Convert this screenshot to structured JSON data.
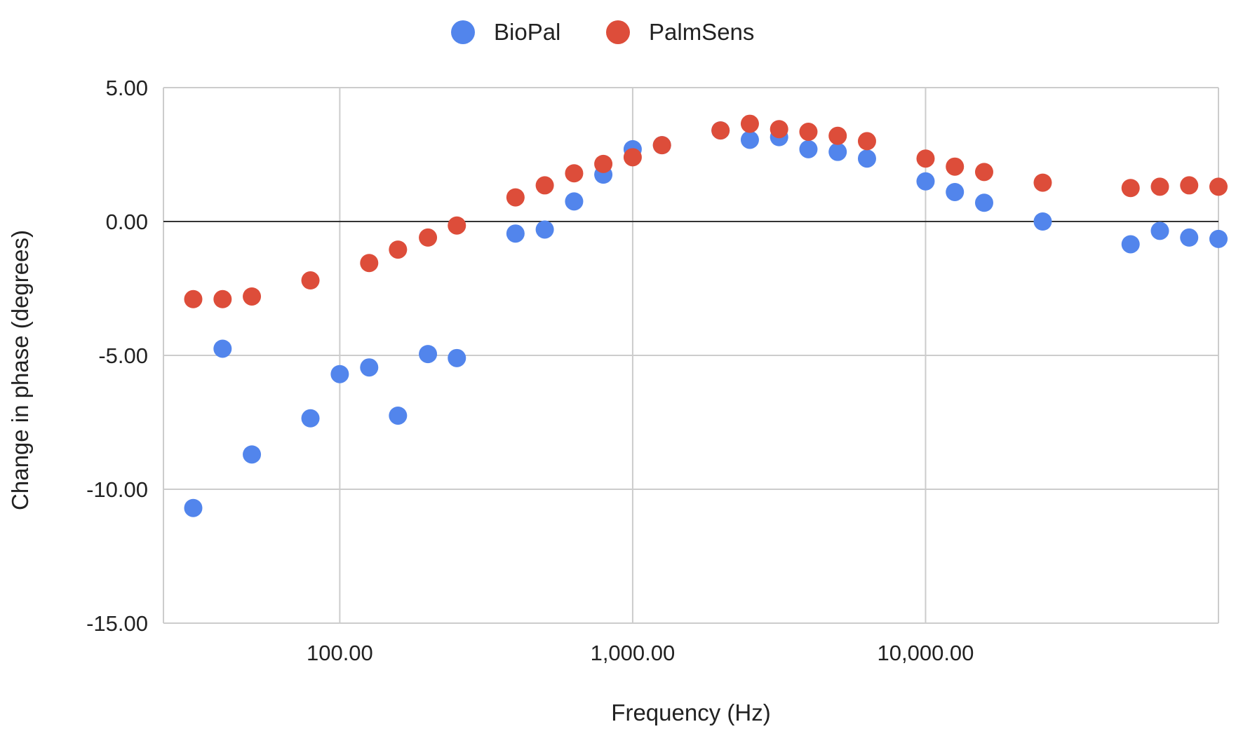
{
  "chart_data": {
    "type": "scatter",
    "title": "",
    "xlabel": "Frequency (Hz)",
    "ylabel": "Change in phase (degrees)",
    "x_scale": "log",
    "xlim": [
      25,
      100000
    ],
    "ylim": [
      -15,
      5
    ],
    "x_ticks": [
      {
        "value": 100,
        "label": "100.00"
      },
      {
        "value": 1000,
        "label": "1,000.00"
      },
      {
        "value": 10000,
        "label": "10,000.00"
      }
    ],
    "x_gridlines": [
      100,
      1000,
      10000,
      100000
    ],
    "y_ticks": [
      {
        "value": 5,
        "label": "5.00"
      },
      {
        "value": 0,
        "label": "0.00"
      },
      {
        "value": -5,
        "label": "-5.00"
      },
      {
        "value": -10,
        "label": "-10.00"
      },
      {
        "value": -15,
        "label": "-15.00"
      }
    ],
    "grid": true,
    "legend_position": "top-center",
    "series": [
      {
        "name": "BioPal",
        "color": "#5285EC",
        "points": [
          [
            31.6,
            -10.7
          ],
          [
            39.8,
            -4.75
          ],
          [
            50.1,
            -8.7
          ],
          [
            79.4,
            -7.35
          ],
          [
            100,
            -5.7
          ],
          [
            126,
            -5.45
          ],
          [
            158,
            -7.25
          ],
          [
            200,
            -4.95
          ],
          [
            251,
            -5.1
          ],
          [
            398,
            -0.45
          ],
          [
            501,
            -0.3
          ],
          [
            631,
            0.75
          ],
          [
            794,
            1.75
          ],
          [
            1000,
            2.7
          ],
          [
            1259,
            2.85
          ],
          [
            1995,
            3.4
          ],
          [
            2512,
            3.05
          ],
          [
            3162,
            3.15
          ],
          [
            3981,
            2.7
          ],
          [
            5012,
            2.6
          ],
          [
            6310,
            2.35
          ],
          [
            10000,
            1.5
          ],
          [
            12589,
            1.1
          ],
          [
            15849,
            0.7
          ],
          [
            25119,
            0
          ],
          [
            50119,
            -0.85
          ],
          [
            63096,
            -0.35
          ],
          [
            79433,
            -0.6
          ],
          [
            100000,
            -0.65
          ]
        ]
      },
      {
        "name": "PalmSens",
        "color": "#DD4D3A",
        "points": [
          [
            31.6,
            -2.9
          ],
          [
            39.8,
            -2.9
          ],
          [
            50.1,
            -2.8
          ],
          [
            79.4,
            -2.2
          ],
          [
            126,
            -1.55
          ],
          [
            158,
            -1.05
          ],
          [
            200,
            -0.6
          ],
          [
            251,
            -0.15
          ],
          [
            398,
            0.9
          ],
          [
            501,
            1.35
          ],
          [
            631,
            1.8
          ],
          [
            794,
            2.15
          ],
          [
            1000,
            2.4
          ],
          [
            1259,
            2.85
          ],
          [
            1995,
            3.4
          ],
          [
            2512,
            3.65
          ],
          [
            3162,
            3.45
          ],
          [
            3981,
            3.35
          ],
          [
            5012,
            3.2
          ],
          [
            6310,
            3.0
          ],
          [
            10000,
            2.35
          ],
          [
            12589,
            2.05
          ],
          [
            15849,
            1.85
          ],
          [
            25119,
            1.45
          ],
          [
            50119,
            1.25
          ],
          [
            63096,
            1.3
          ],
          [
            79433,
            1.35
          ],
          [
            100000,
            1.3
          ]
        ]
      }
    ]
  }
}
